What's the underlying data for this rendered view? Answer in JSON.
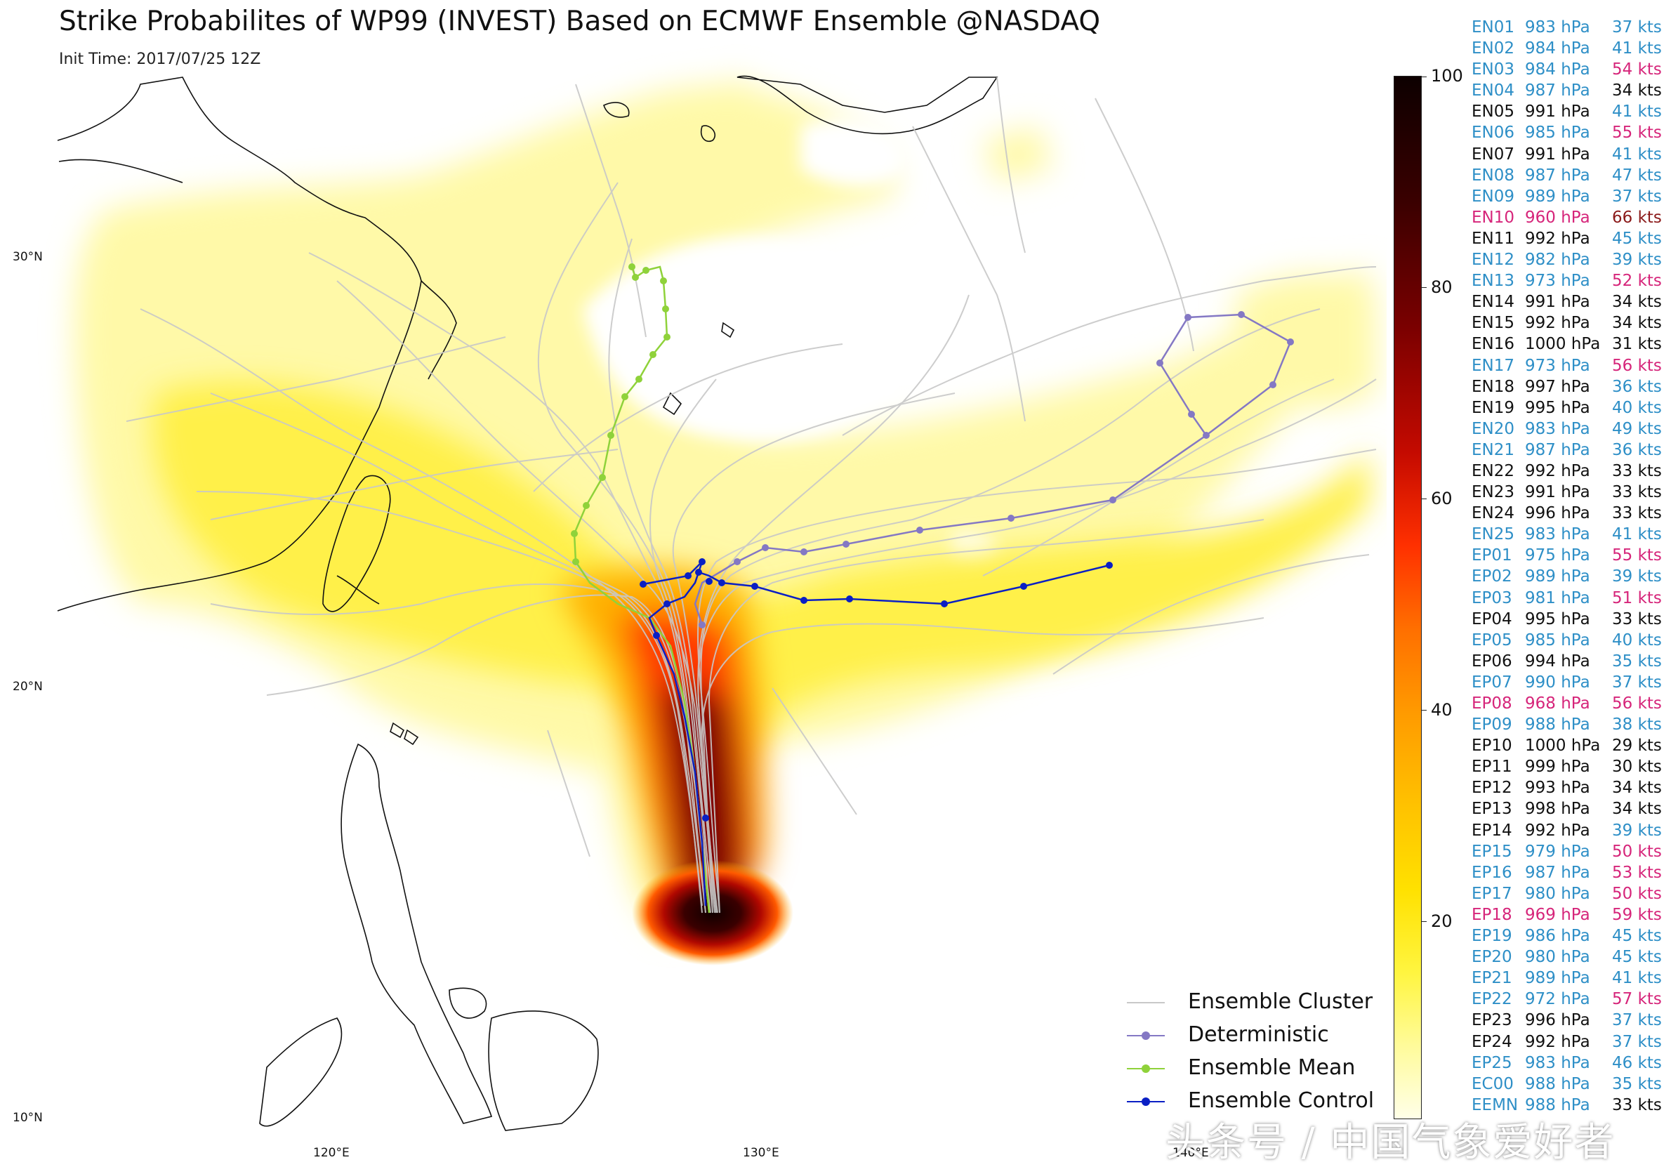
{
  "title": "Strike Probabilites of WP99 (INVEST) Based on ECMWF Ensemble @NASDAQ",
  "init_time": "Init Time: 2017/07/25 12Z",
  "latitude_labels": [
    "30°N",
    "20°N",
    "10°N"
  ],
  "longitude_labels": [
    "120°E",
    "130°E",
    "140°E"
  ],
  "colorbar": {
    "ticks": [
      "100",
      "80",
      "60",
      "40",
      "20"
    ],
    "colors": [
      "#0d0000",
      "#7a0000",
      "#ff3000",
      "#ff9a00",
      "#ffe100",
      "#ffffe8"
    ]
  },
  "colors": {
    "black": "#111111",
    "blue": "#2e8fc7",
    "pink": "#d6257a",
    "maroon": "#8b1a1a",
    "ensemble_cluster": "#c8c8c8",
    "deterministic": "#8478c4",
    "ensemble_mean": "#8fd23a",
    "ensemble_control": "#0a1fc4"
  },
  "members": [
    {
      "id": "EN01",
      "pressure": "983 hPa",
      "wind": "37 kts",
      "c1": "blue",
      "c2": "blue"
    },
    {
      "id": "EN02",
      "pressure": "984 hPa",
      "wind": "41 kts",
      "c1": "blue",
      "c2": "blue"
    },
    {
      "id": "EN03",
      "pressure": "984 hPa",
      "wind": "54 kts",
      "c1": "blue",
      "c2": "pink"
    },
    {
      "id": "EN04",
      "pressure": "987 hPa",
      "wind": "34 kts",
      "c1": "blue",
      "c2": "black"
    },
    {
      "id": "EN05",
      "pressure": "991 hPa",
      "wind": "41 kts",
      "c1": "black",
      "c2": "blue"
    },
    {
      "id": "EN06",
      "pressure": "985 hPa",
      "wind": "55 kts",
      "c1": "blue",
      "c2": "pink"
    },
    {
      "id": "EN07",
      "pressure": "991 hPa",
      "wind": "41 kts",
      "c1": "black",
      "c2": "blue"
    },
    {
      "id": "EN08",
      "pressure": "987 hPa",
      "wind": "47 kts",
      "c1": "blue",
      "c2": "blue"
    },
    {
      "id": "EN09",
      "pressure": "989 hPa",
      "wind": "37 kts",
      "c1": "blue",
      "c2": "blue"
    },
    {
      "id": "EN10",
      "pressure": "960 hPa",
      "wind": "66 kts",
      "c1": "pink",
      "c2": "maroon"
    },
    {
      "id": "EN11",
      "pressure": "992 hPa",
      "wind": "45 kts",
      "c1": "black",
      "c2": "blue"
    },
    {
      "id": "EN12",
      "pressure": "982 hPa",
      "wind": "39 kts",
      "c1": "blue",
      "c2": "blue"
    },
    {
      "id": "EN13",
      "pressure": "973 hPa",
      "wind": "52 kts",
      "c1": "blue",
      "c2": "pink"
    },
    {
      "id": "EN14",
      "pressure": "991 hPa",
      "wind": "34 kts",
      "c1": "black",
      "c2": "black"
    },
    {
      "id": "EN15",
      "pressure": "992 hPa",
      "wind": "34 kts",
      "c1": "black",
      "c2": "black"
    },
    {
      "id": "EN16",
      "pressure": "1000 hPa",
      "wind": "31 kts",
      "c1": "black",
      "c2": "black"
    },
    {
      "id": "EN17",
      "pressure": "973 hPa",
      "wind": "56 kts",
      "c1": "blue",
      "c2": "pink"
    },
    {
      "id": "EN18",
      "pressure": "997 hPa",
      "wind": "36 kts",
      "c1": "black",
      "c2": "blue"
    },
    {
      "id": "EN19",
      "pressure": "995 hPa",
      "wind": "40 kts",
      "c1": "black",
      "c2": "blue"
    },
    {
      "id": "EN20",
      "pressure": "983 hPa",
      "wind": "49 kts",
      "c1": "blue",
      "c2": "blue"
    },
    {
      "id": "EN21",
      "pressure": "987 hPa",
      "wind": "36 kts",
      "c1": "blue",
      "c2": "blue"
    },
    {
      "id": "EN22",
      "pressure": "992 hPa",
      "wind": "33 kts",
      "c1": "black",
      "c2": "black"
    },
    {
      "id": "EN23",
      "pressure": "991 hPa",
      "wind": "33 kts",
      "c1": "black",
      "c2": "black"
    },
    {
      "id": "EN24",
      "pressure": "996 hPa",
      "wind": "33 kts",
      "c1": "black",
      "c2": "black"
    },
    {
      "id": "EN25",
      "pressure": "983 hPa",
      "wind": "41 kts",
      "c1": "blue",
      "c2": "blue"
    },
    {
      "id": "EP01",
      "pressure": "975 hPa",
      "wind": "55 kts",
      "c1": "blue",
      "c2": "pink"
    },
    {
      "id": "EP02",
      "pressure": "989 hPa",
      "wind": "39 kts",
      "c1": "blue",
      "c2": "blue"
    },
    {
      "id": "EP03",
      "pressure": "981 hPa",
      "wind": "51 kts",
      "c1": "blue",
      "c2": "pink"
    },
    {
      "id": "EP04",
      "pressure": "995 hPa",
      "wind": "33 kts",
      "c1": "black",
      "c2": "black"
    },
    {
      "id": "EP05",
      "pressure": "985 hPa",
      "wind": "40 kts",
      "c1": "blue",
      "c2": "blue"
    },
    {
      "id": "EP06",
      "pressure": "994 hPa",
      "wind": "35 kts",
      "c1": "black",
      "c2": "blue"
    },
    {
      "id": "EP07",
      "pressure": "990 hPa",
      "wind": "37 kts",
      "c1": "blue",
      "c2": "blue"
    },
    {
      "id": "EP08",
      "pressure": "968 hPa",
      "wind": "56 kts",
      "c1": "pink",
      "c2": "pink"
    },
    {
      "id": "EP09",
      "pressure": "988 hPa",
      "wind": "38 kts",
      "c1": "blue",
      "c2": "blue"
    },
    {
      "id": "EP10",
      "pressure": "1000 hPa",
      "wind": "29 kts",
      "c1": "black",
      "c2": "black"
    },
    {
      "id": "EP11",
      "pressure": "999 hPa",
      "wind": "30 kts",
      "c1": "black",
      "c2": "black"
    },
    {
      "id": "EP12",
      "pressure": "993 hPa",
      "wind": "34 kts",
      "c1": "black",
      "c2": "black"
    },
    {
      "id": "EP13",
      "pressure": "998 hPa",
      "wind": "34 kts",
      "c1": "black",
      "c2": "black"
    },
    {
      "id": "EP14",
      "pressure": "992 hPa",
      "wind": "39 kts",
      "c1": "black",
      "c2": "blue"
    },
    {
      "id": "EP15",
      "pressure": "979 hPa",
      "wind": "50 kts",
      "c1": "blue",
      "c2": "pink"
    },
    {
      "id": "EP16",
      "pressure": "987 hPa",
      "wind": "53 kts",
      "c1": "blue",
      "c2": "pink"
    },
    {
      "id": "EP17",
      "pressure": "980 hPa",
      "wind": "50 kts",
      "c1": "blue",
      "c2": "pink"
    },
    {
      "id": "EP18",
      "pressure": "969 hPa",
      "wind": "59 kts",
      "c1": "pink",
      "c2": "pink"
    },
    {
      "id": "EP19",
      "pressure": "986 hPa",
      "wind": "45 kts",
      "c1": "blue",
      "c2": "blue"
    },
    {
      "id": "EP20",
      "pressure": "980 hPa",
      "wind": "45 kts",
      "c1": "blue",
      "c2": "blue"
    },
    {
      "id": "EP21",
      "pressure": "989 hPa",
      "wind": "41 kts",
      "c1": "blue",
      "c2": "blue"
    },
    {
      "id": "EP22",
      "pressure": "972 hPa",
      "wind": "57 kts",
      "c1": "blue",
      "c2": "pink"
    },
    {
      "id": "EP23",
      "pressure": "996 hPa",
      "wind": "37 kts",
      "c1": "black",
      "c2": "blue"
    },
    {
      "id": "EP24",
      "pressure": "992 hPa",
      "wind": "37 kts",
      "c1": "black",
      "c2": "blue"
    },
    {
      "id": "EP25",
      "pressure": "983 hPa",
      "wind": "46 kts",
      "c1": "blue",
      "c2": "blue"
    },
    {
      "id": "EC00",
      "pressure": "988 hPa",
      "wind": "35 kts",
      "c1": "blue",
      "c2": "blue"
    },
    {
      "id": "EEMN",
      "pressure": "988 hPa",
      "wind": "33 kts",
      "c1": "blue",
      "c2": "black"
    }
  ],
  "legend": [
    {
      "label": "Ensemble Cluster",
      "color_key": "ensemble_cluster",
      "marker": false
    },
    {
      "label": "Deterministic",
      "color_key": "deterministic",
      "marker": true
    },
    {
      "label": "Ensemble Mean",
      "color_key": "ensemble_mean",
      "marker": true
    },
    {
      "label": "Ensemble Control",
      "color_key": "ensemble_control",
      "marker": true
    }
  ],
  "watermark": "头条号 / 中国气象爱好者"
}
